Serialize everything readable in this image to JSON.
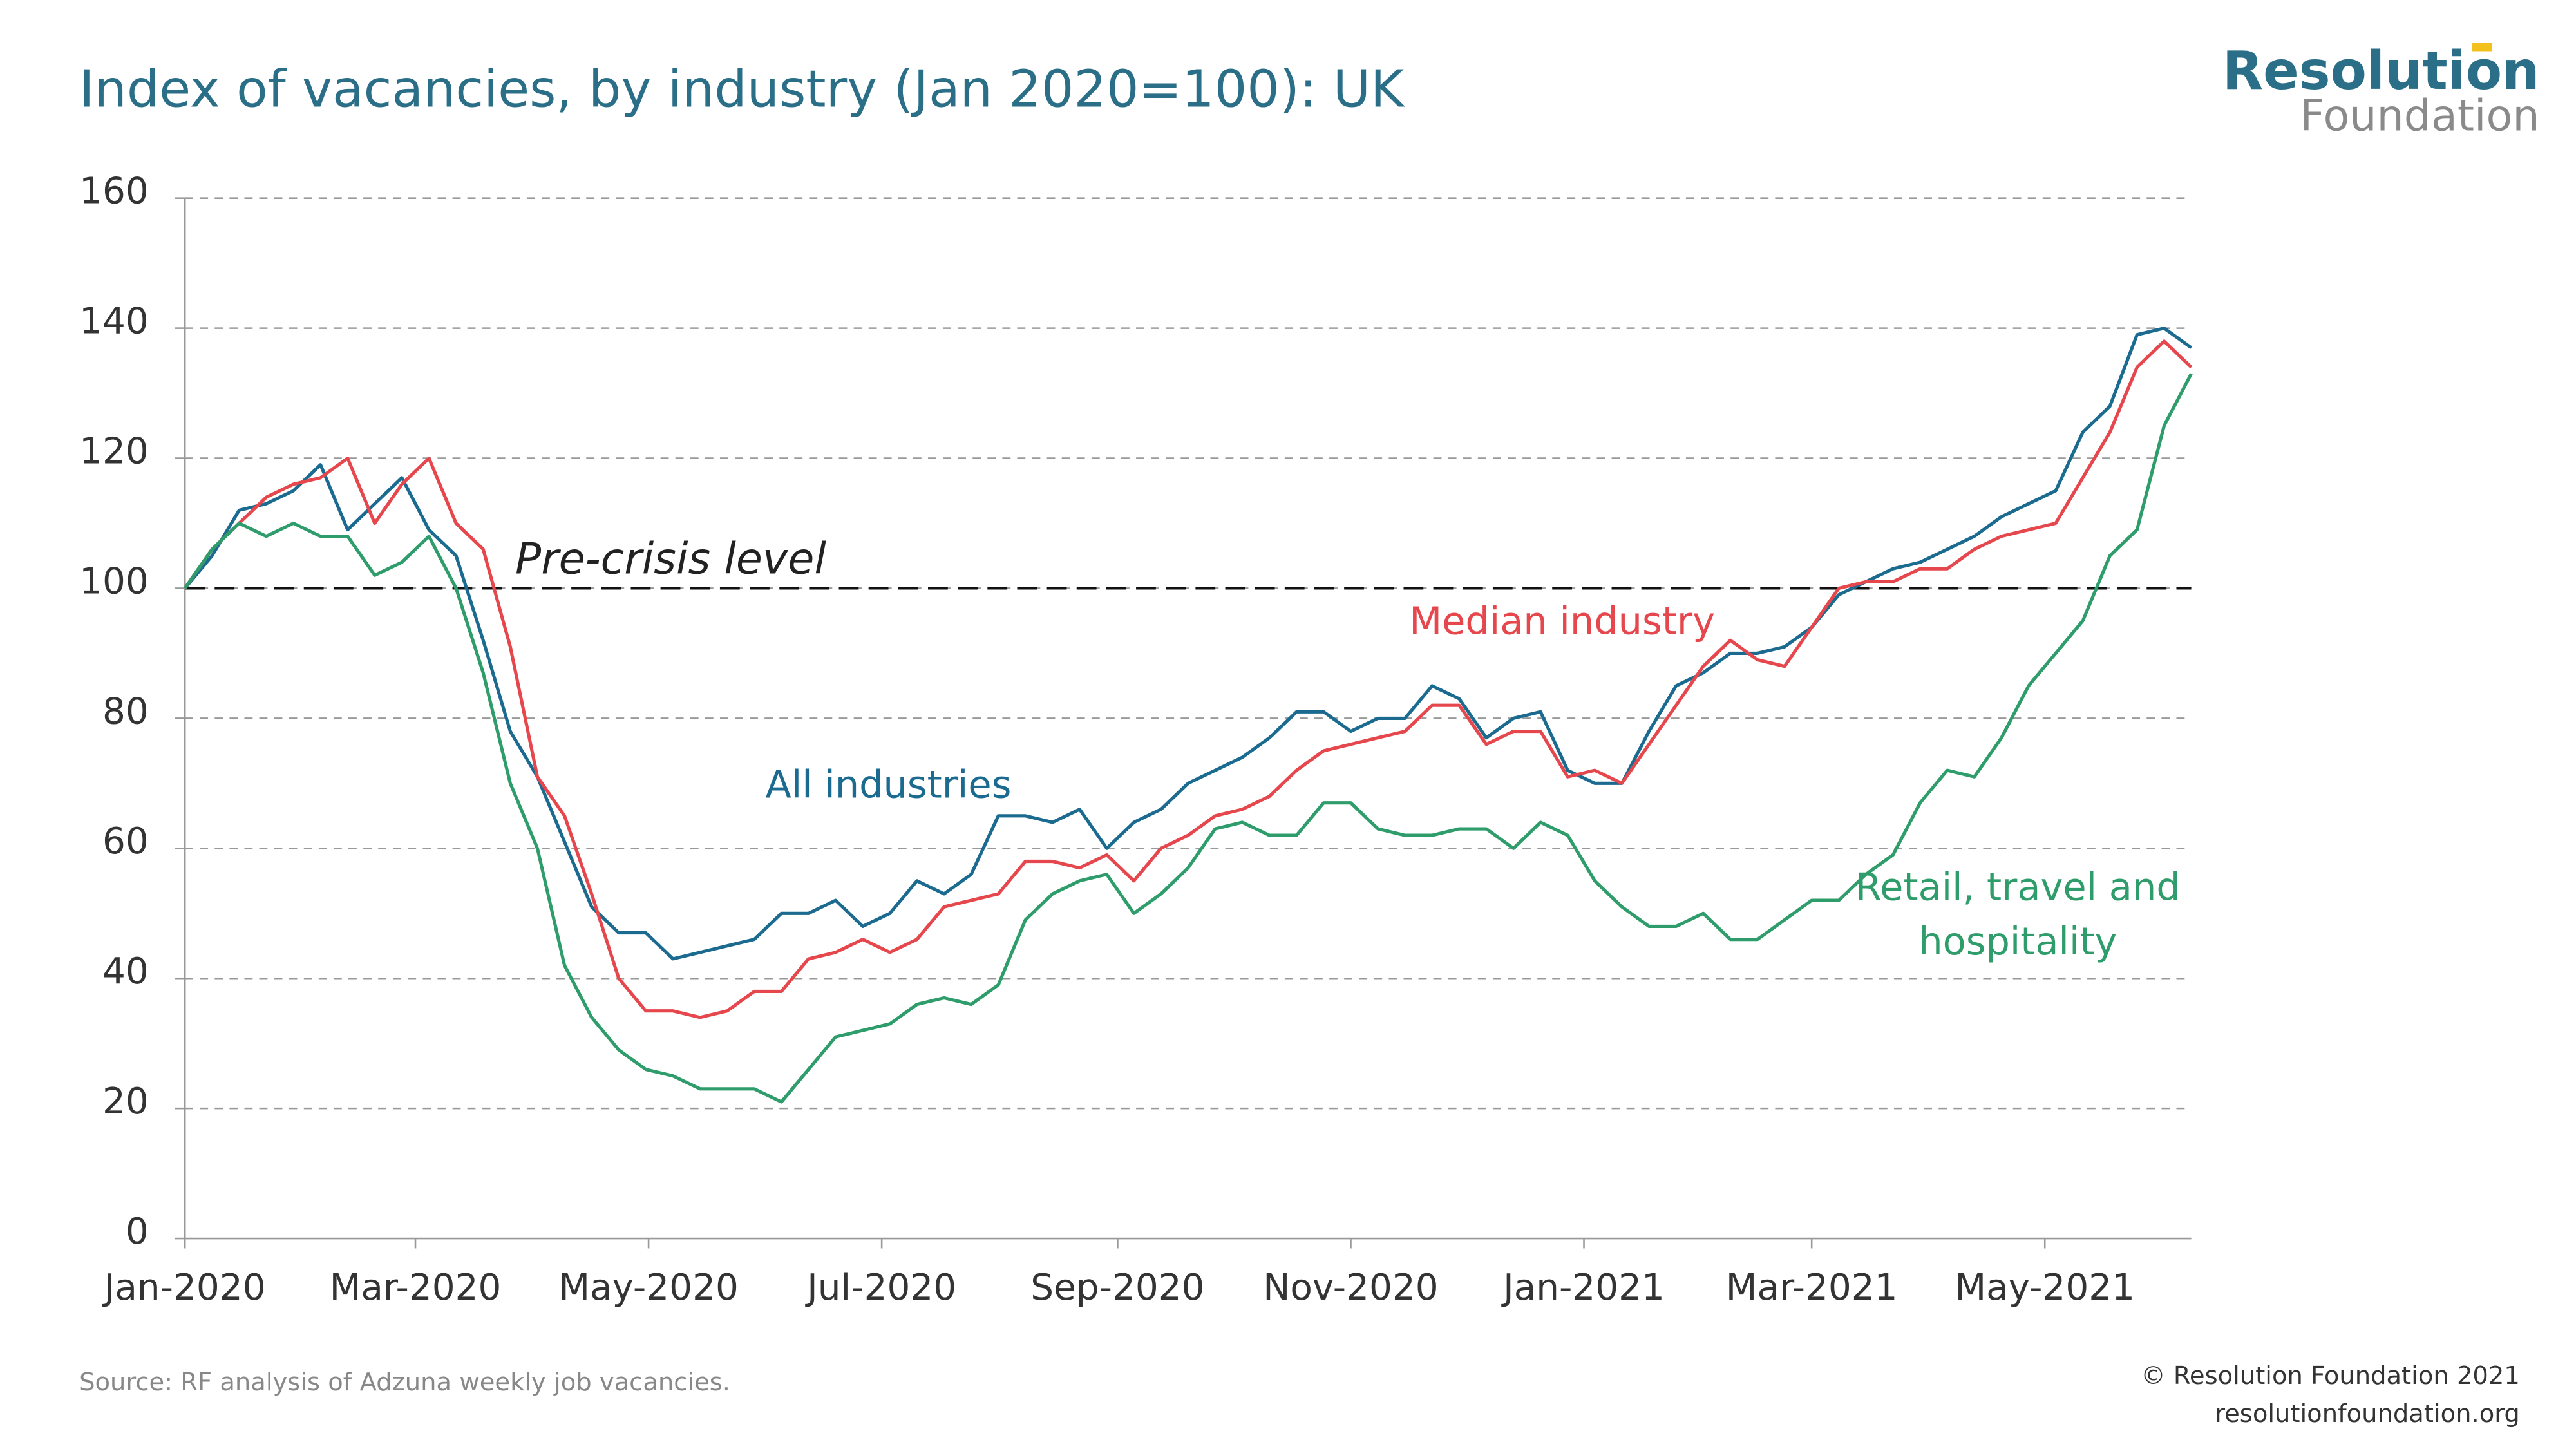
{
  "chart_data": {
    "type": "line",
    "title": "Index of vacancies, by industry (Jan 2020=100): UK",
    "source": "Source: RF analysis of Adzuna weekly job vacancies.",
    "copyright": "© Resolution Foundation 2021",
    "website": "resolutionfoundation.org",
    "logo": {
      "top": "Resolution",
      "bottom": "Foundation"
    },
    "reference_line": {
      "value": 100,
      "label": "Pre-crisis level"
    },
    "x": [
      0,
      1,
      2,
      3,
      4,
      5,
      6,
      7,
      8,
      9,
      10,
      11,
      12,
      13,
      14,
      15,
      16,
      17,
      18,
      19,
      20,
      21,
      22,
      23,
      24,
      25,
      26,
      27,
      28,
      29,
      30,
      31,
      32,
      33,
      34,
      35,
      36,
      37,
      38,
      39,
      40,
      41,
      42,
      43,
      44,
      45,
      46,
      47,
      48,
      49,
      50,
      51,
      52,
      53,
      54,
      55,
      56,
      57,
      58,
      59,
      60,
      61,
      62,
      63,
      64,
      65,
      66,
      67,
      68,
      69,
      70,
      71,
      72,
      73,
      74
    ],
    "xlim": [
      0,
      74
    ],
    "xticks": [
      {
        "value": 0,
        "label": "Jan-2020"
      },
      {
        "value": 8.5,
        "label": "Mar-2020"
      },
      {
        "value": 17.1,
        "label": "May-2020"
      },
      {
        "value": 25.7,
        "label": "Jul-2020"
      },
      {
        "value": 34.4,
        "label": "Sep-2020"
      },
      {
        "value": 43.0,
        "label": "Nov-2020"
      },
      {
        "value": 51.6,
        "label": "Jan-2021"
      },
      {
        "value": 60.0,
        "label": "Mar-2021"
      },
      {
        "value": 68.6,
        "label": "May-2021"
      }
    ],
    "ylim": [
      0,
      160
    ],
    "yticks": [
      0,
      20,
      40,
      60,
      80,
      100,
      120,
      140,
      160
    ],
    "grid": true,
    "series": [
      {
        "name": "All industries",
        "color": "#1b6a8f",
        "values": [
          100,
          105,
          112,
          113,
          115,
          119,
          109,
          113,
          117,
          109,
          105,
          92,
          78,
          71,
          61,
          51,
          47,
          47,
          43,
          44,
          45,
          46,
          50,
          50,
          52,
          48,
          50,
          55,
          53,
          56,
          65,
          65,
          64,
          66,
          60,
          64,
          66,
          70,
          72,
          74,
          77,
          81,
          81,
          78,
          80,
          80,
          85,
          83,
          77,
          80,
          81,
          72,
          70,
          70,
          78,
          85,
          87,
          90,
          90,
          91,
          94,
          99,
          101,
          103,
          104,
          106,
          108,
          111,
          113,
          115,
          124,
          128,
          139,
          140,
          137
        ]
      },
      {
        "name": "Median industry",
        "color": "#e5474d",
        "values": [
          100,
          106,
          110,
          114,
          116,
          117,
          120,
          110,
          116,
          120,
          110,
          106,
          91,
          71,
          65,
          53,
          40,
          35,
          35,
          34,
          35,
          38,
          38,
          43,
          44,
          46,
          44,
          46,
          51,
          52,
          53,
          58,
          58,
          57,
          59,
          55,
          60,
          62,
          65,
          66,
          68,
          72,
          75,
          76,
          77,
          78,
          82,
          82,
          76,
          78,
          78,
          71,
          72,
          70,
          76,
          82,
          88,
          92,
          89,
          88,
          94,
          100,
          101,
          101,
          103,
          103,
          106,
          108,
          109,
          110,
          117,
          124,
          134,
          138,
          134
        ]
      },
      {
        "name": "Retail, travel and hospitality",
        "color": "#2f9d6b",
        "values": [
          100,
          106,
          110,
          108,
          110,
          108,
          108,
          102,
          104,
          108,
          100,
          87,
          70,
          60,
          42,
          34,
          29,
          26,
          25,
          23,
          23,
          23,
          21,
          26,
          31,
          32,
          33,
          36,
          37,
          36,
          39,
          49,
          53,
          55,
          56,
          50,
          53,
          57,
          63,
          64,
          62,
          62,
          67,
          67,
          63,
          62,
          62,
          63,
          63,
          60,
          64,
          62,
          55,
          51,
          48,
          48,
          50,
          46,
          46,
          49,
          52,
          52,
          56,
          59,
          67,
          72,
          71,
          77,
          85,
          90,
          95,
          105,
          109,
          125,
          133
        ]
      }
    ]
  }
}
